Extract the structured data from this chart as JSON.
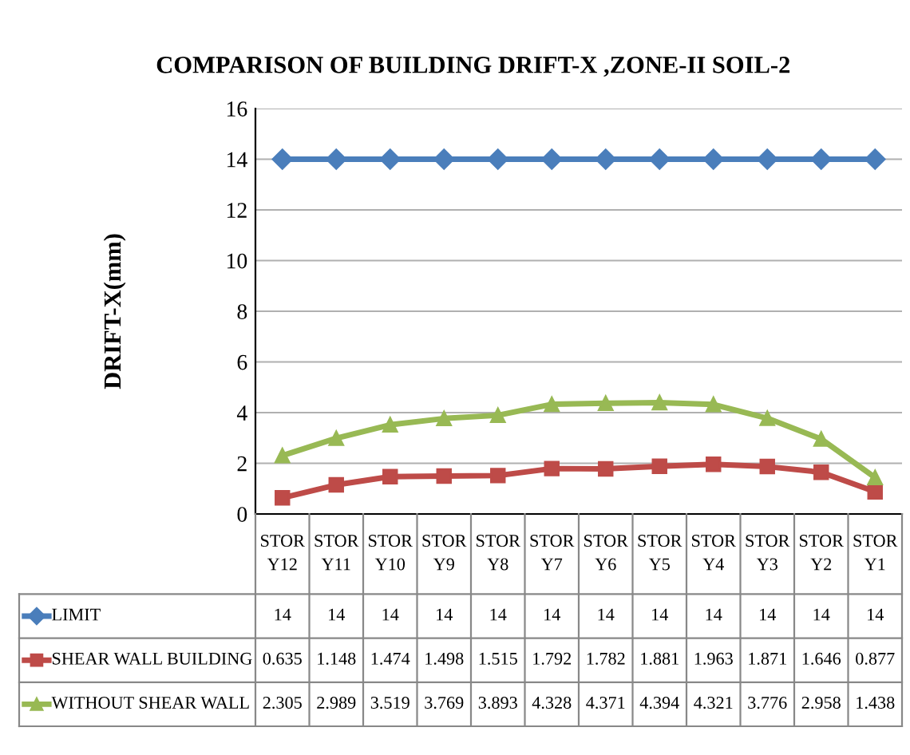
{
  "chart_data": {
    "type": "line",
    "title": "COMPARISON OF BUILDING DRIFT-X ,ZONE-II SOIL-2",
    "ylabel": "DRIFT-X(mm)",
    "categories": [
      "STORY12",
      "STORY11",
      "STORY10",
      "STORY9",
      "STORY8",
      "STORY7",
      "STORY6",
      "STORY5",
      "STORY4",
      "STORY3",
      "STORY2",
      "STORY1"
    ],
    "series": [
      {
        "name": "LIMIT",
        "color": "#4a7ebb",
        "marker": "diamond",
        "values": [
          14,
          14,
          14,
          14,
          14,
          14,
          14,
          14,
          14,
          14,
          14,
          14
        ]
      },
      {
        "name": "SHEAR WALL BUILDING",
        "color": "#be4b48",
        "marker": "square",
        "values": [
          0.635,
          1.148,
          1.474,
          1.498,
          1.515,
          1.792,
          1.782,
          1.881,
          1.963,
          1.871,
          1.646,
          0.877
        ]
      },
      {
        "name": "WITHOUT SHEAR WALL",
        "color": "#98b954",
        "marker": "triangle",
        "values": [
          2.305,
          2.989,
          3.519,
          3.769,
          3.893,
          4.328,
          4.371,
          4.394,
          4.321,
          3.776,
          2.958,
          1.438
        ]
      }
    ],
    "ylim": [
      0,
      16
    ],
    "yticks": [
      0,
      2,
      4,
      6,
      8,
      10,
      12,
      14,
      16
    ],
    "grid": "y",
    "legend": "bottom left",
    "data_labels": true,
    "line_style": "solid"
  }
}
